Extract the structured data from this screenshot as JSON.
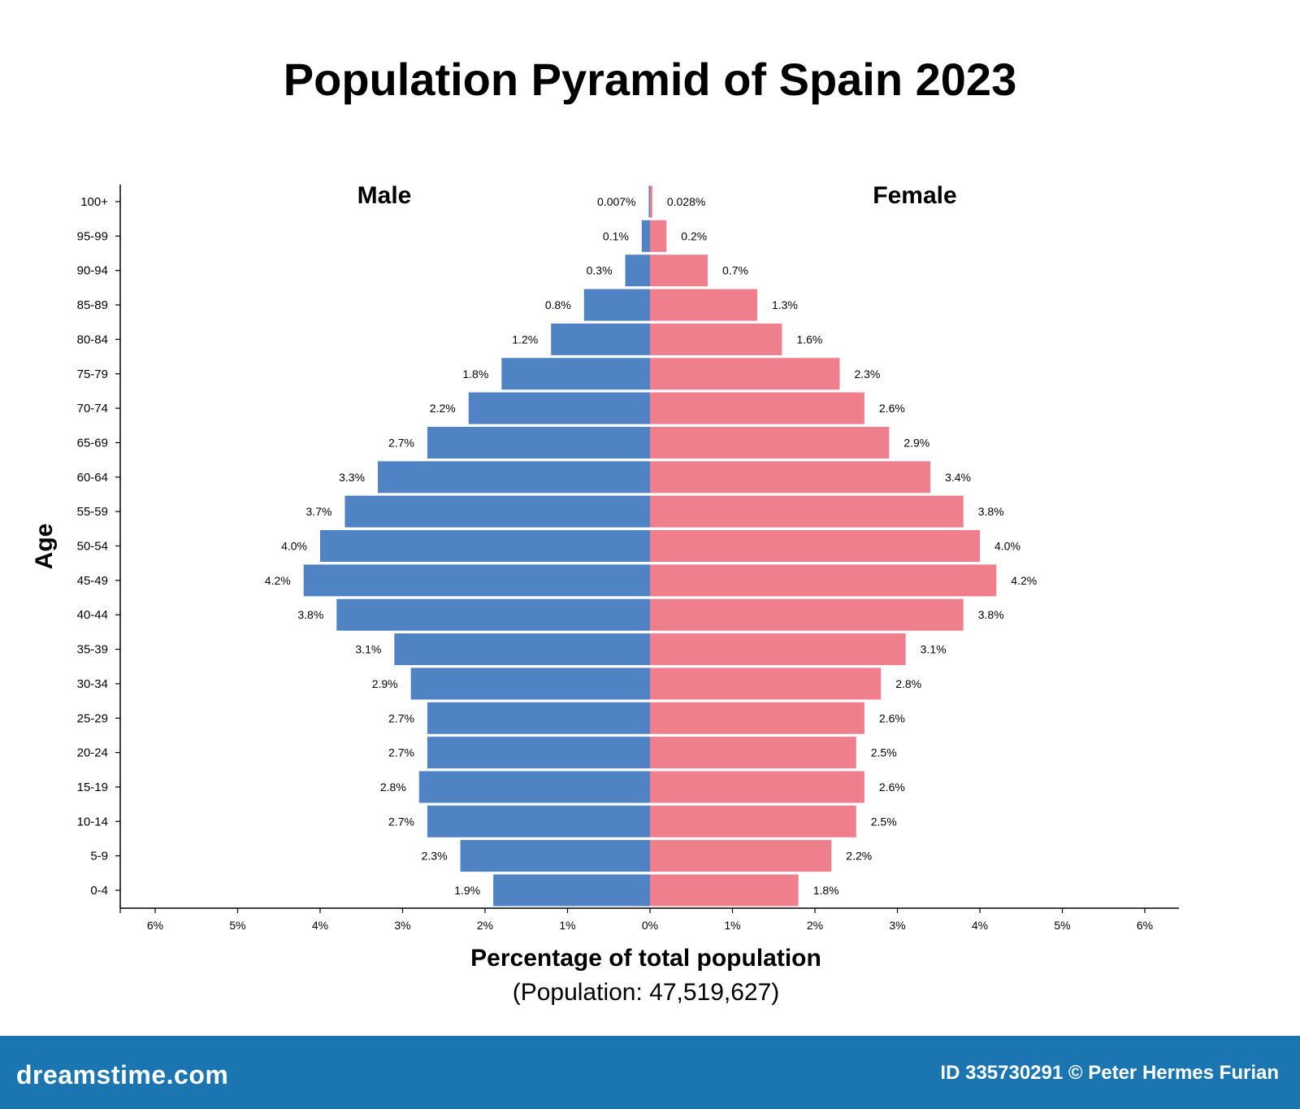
{
  "chart_data": {
    "type": "bar",
    "orientation": "horizontal",
    "layout": "population-pyramid",
    "title": "Population Pyramid of Spain 2023",
    "xlabel": "Percentage of total population",
    "subtitle": "(Population: 47,519,627)",
    "ylabel": "Age",
    "xlim": [
      -6,
      6
    ],
    "x_ticks": [
      "6%",
      "5%",
      "4%",
      "3%",
      "2%",
      "1%",
      "0%",
      "1%",
      "2%",
      "3%",
      "4%",
      "5%",
      "6%"
    ],
    "grid": false,
    "categories": [
      "0-4",
      "5-9",
      "10-14",
      "15-19",
      "20-24",
      "25-29",
      "30-34",
      "35-39",
      "40-44",
      "45-49",
      "50-54",
      "55-59",
      "60-64",
      "65-69",
      "70-74",
      "75-79",
      "80-84",
      "85-89",
      "90-94",
      "95-99",
      "100+"
    ],
    "series": [
      {
        "name": "Male",
        "color": "#4f83c4",
        "values": [
          1.9,
          2.3,
          2.7,
          2.8,
          2.7,
          2.7,
          2.9,
          3.1,
          3.8,
          4.2,
          4.0,
          3.7,
          3.3,
          2.7,
          2.2,
          1.8,
          1.2,
          0.8,
          0.3,
          0.1,
          0.007
        ],
        "labels": [
          "1.9%",
          "2.3%",
          "2.7%",
          "2.8%",
          "2.7%",
          "2.7%",
          "2.9%",
          "3.1%",
          "3.8%",
          "4.2%",
          "4.0%",
          "3.7%",
          "3.3%",
          "2.7%",
          "2.2%",
          "1.8%",
          "1.2%",
          "0.8%",
          "0.3%",
          "0.1%",
          "0.007%"
        ]
      },
      {
        "name": "Female",
        "color": "#ef7f8c",
        "values": [
          1.8,
          2.2,
          2.5,
          2.6,
          2.5,
          2.6,
          2.8,
          3.1,
          3.8,
          4.2,
          4.0,
          3.8,
          3.4,
          2.9,
          2.6,
          2.3,
          1.6,
          1.3,
          0.7,
          0.2,
          0.028
        ],
        "labels": [
          "1.8%",
          "2.2%",
          "2.5%",
          "2.6%",
          "2.5%",
          "2.6%",
          "2.8%",
          "3.1%",
          "3.8%",
          "4.2%",
          "4.0%",
          "3.8%",
          "3.4%",
          "2.9%",
          "2.6%",
          "2.3%",
          "1.6%",
          "1.3%",
          "0.7%",
          "0.2%",
          "0.028%"
        ]
      }
    ]
  },
  "footer": {
    "logo": "dreamstime.com",
    "credit": "ID 335730291 © Peter Hermes Furian",
    "color": "#1a75b0"
  }
}
